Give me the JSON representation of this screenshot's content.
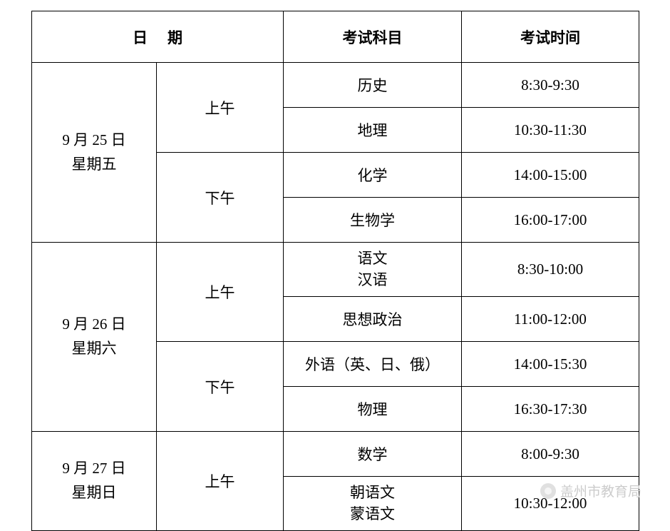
{
  "table": {
    "header": {
      "date": "日期",
      "subject": "考试科目",
      "time": "考试时间"
    },
    "days": [
      {
        "date_line1": "9 月 25 日",
        "date_line2": "星期五",
        "periods": [
          {
            "name": "上午",
            "slots": [
              {
                "subject": "历史",
                "time": "8:30-9:30"
              },
              {
                "subject": "地理",
                "time": "10:30-11:30"
              }
            ]
          },
          {
            "name": "下午",
            "slots": [
              {
                "subject": "化学",
                "time": "14:00-15:00"
              },
              {
                "subject": "生物学",
                "time": "16:00-17:00"
              }
            ]
          }
        ]
      },
      {
        "date_line1": "9 月 26 日",
        "date_line2": "星期六",
        "periods": [
          {
            "name": "上午",
            "slots": [
              {
                "subject_line1": "语文",
                "subject_line2": "汉语",
                "time": "8:30-10:00"
              },
              {
                "subject": "思想政治",
                "time": "11:00-12:00"
              }
            ]
          },
          {
            "name": "下午",
            "slots": [
              {
                "subject": "外语（英、日、俄）",
                "time": "14:00-15:30"
              },
              {
                "subject": "物理",
                "time": "16:30-17:30"
              }
            ]
          }
        ]
      },
      {
        "date_line1": "9 月 27 日",
        "date_line2": "星期日",
        "periods": [
          {
            "name": "上午",
            "slots": [
              {
                "subject": "数学",
                "time": "8:00-9:30"
              },
              {
                "subject_line1": "朝语文",
                "subject_line2": "蒙语文",
                "time": "10:30-12:00"
              }
            ]
          }
        ]
      }
    ]
  },
  "watermark": {
    "text": "盖州市教育局"
  },
  "colors": {
    "border": "#000000",
    "text": "#000000",
    "background": "#ffffff",
    "watermark": "#cccccc"
  }
}
